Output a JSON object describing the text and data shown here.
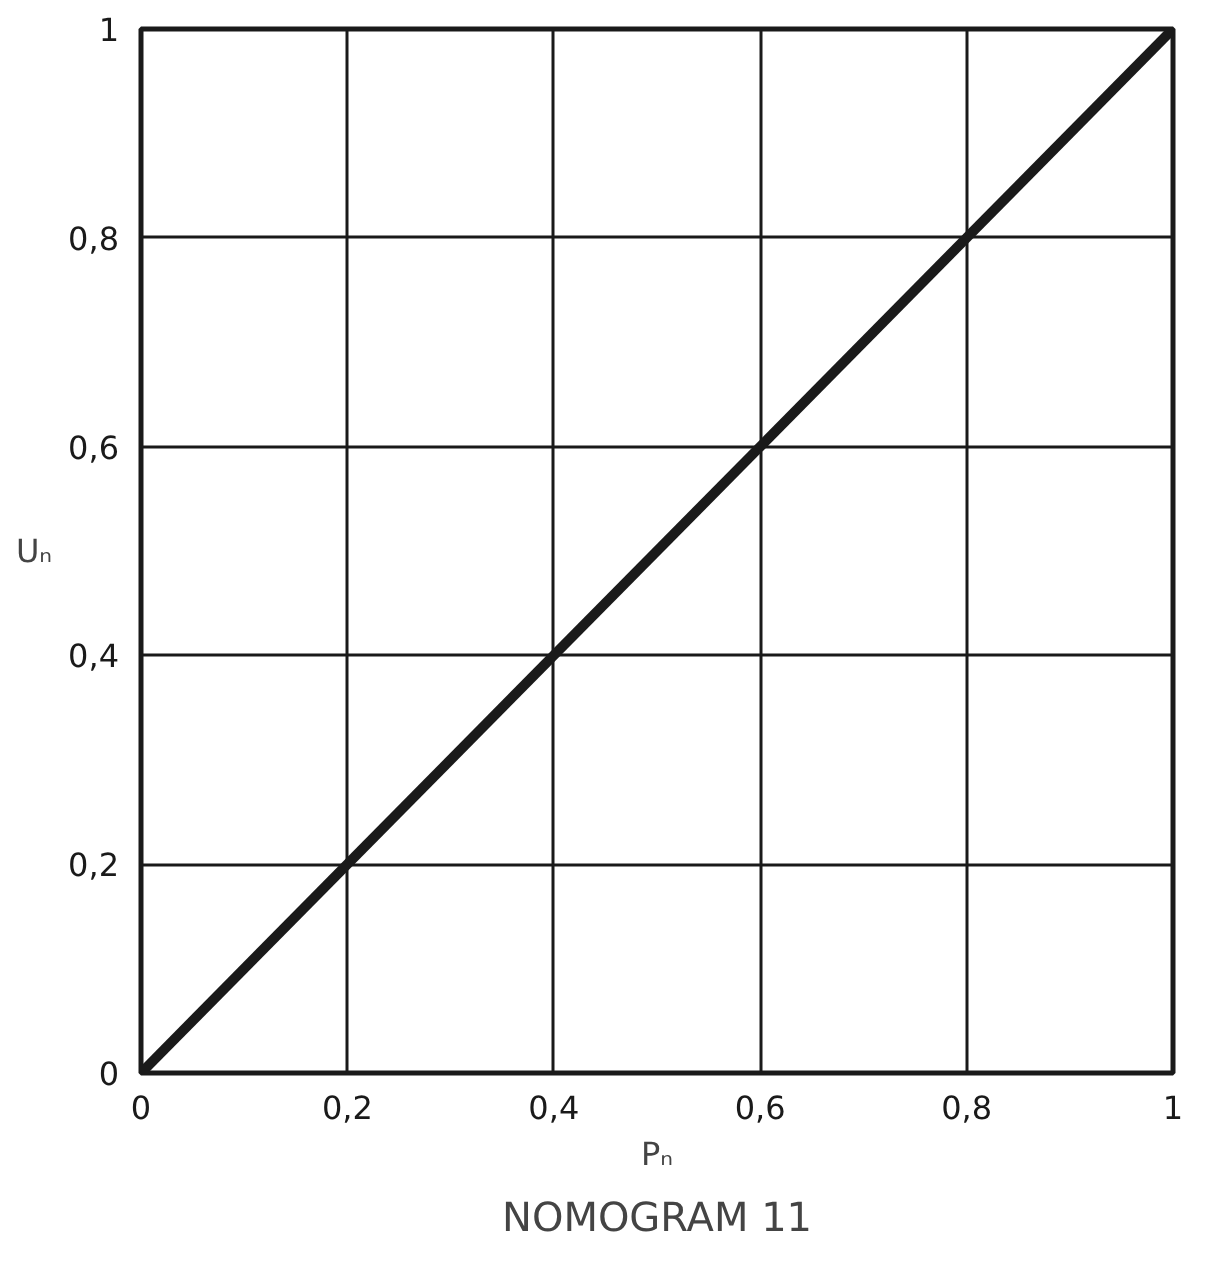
{
  "chart_data": {
    "type": "line",
    "title": "NOMOGRAM 11",
    "xlabel": "Pₙ",
    "ylabel": "Uₙ",
    "x": [
      0,
      1
    ],
    "series": [
      {
        "color": "#1a1a1a",
        "values": [
          0,
          1
        ]
      }
    ],
    "xlim": [
      0,
      1
    ],
    "ylim": [
      0,
      1
    ],
    "xticks": [
      0,
      {
        "value": 0.2,
        "label": "0,2"
      },
      {
        "value": 0.4,
        "label": "0,4"
      },
      {
        "value": 0.6,
        "label": "0,6"
      },
      {
        "value": 0.8,
        "label": "0,8"
      },
      1
    ],
    "yticks": [
      0,
      {
        "value": 0.2,
        "label": "0,2"
      },
      {
        "value": 0.4,
        "label": "0,4"
      },
      {
        "value": 0.6,
        "label": "0,6"
      },
      {
        "value": 0.8,
        "label": "0,8"
      },
      1
    ],
    "grid": true,
    "line_style": "solid"
  }
}
